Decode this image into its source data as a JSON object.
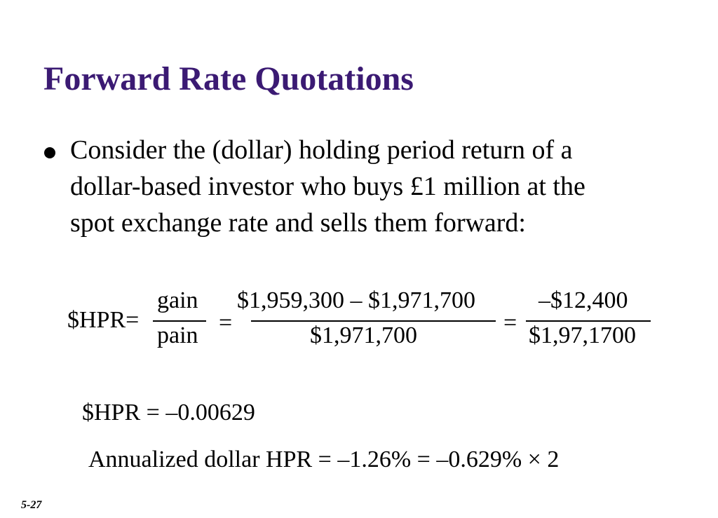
{
  "slide": {
    "title": "Forward Rate Quotations",
    "bullet_lines": [
      "Consider the (dollar) holding period return of a",
      "dollar-based investor who buys £1 million at the",
      "spot exchange rate and sells them forward:"
    ],
    "equation": {
      "lhs": "$HPR=",
      "frac1_num": "gain",
      "frac1_den": "pain",
      "eq_sign_1": "=",
      "frac2_num": "$1,959,300 – $1,971,700",
      "frac2_den": "$1,971,700",
      "eq_sign_2": "=",
      "frac3_num": "–$12,400",
      "frac3_den": "$1,97,1700"
    },
    "hpr_result": "$HPR = –0.00629",
    "annualized": "Annualized dollar HPR = –1.26% =  –0.629% × 2",
    "slide_number": "5-27"
  }
}
